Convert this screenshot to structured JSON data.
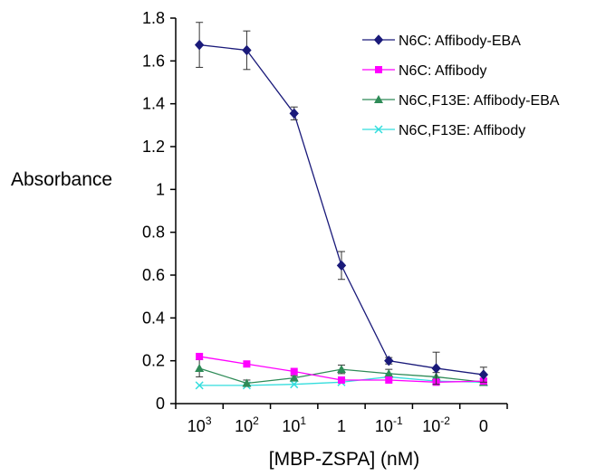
{
  "chart_data": {
    "type": "line",
    "title": "",
    "xlabel": "[MBP-ZSPA]   (nM)",
    "ylabel": "Absorbance",
    "categories": [
      {
        "base": "10",
        "sup": "3"
      },
      {
        "base": "10",
        "sup": "2"
      },
      {
        "base": "10",
        "sup": "1"
      },
      {
        "base": "1",
        "sup": ""
      },
      {
        "base": "10",
        "sup": "-1"
      },
      {
        "base": "10",
        "sup": "-2"
      },
      {
        "base": "0",
        "sup": ""
      }
    ],
    "ylim": [
      0,
      1.8
    ],
    "yticks": [
      "0",
      "0.2",
      "0.4",
      "0.6",
      "0.8",
      "1",
      "1.2",
      "1.4",
      "1.6",
      "1.8"
    ],
    "grid": false,
    "legend": "top-right",
    "series": [
      {
        "name": "N6C: Affibody-EBA",
        "color": "#1a1a7a",
        "marker": "diamond",
        "values": [
          1.675,
          1.65,
          1.355,
          0.645,
          0.2,
          0.165,
          0.135
        ],
        "errors": [
          0.105,
          0.09,
          0.03,
          0.065,
          0.015,
          0.075,
          0.035
        ]
      },
      {
        "name": "N6C: Affibody",
        "color": "#ff00ff",
        "marker": "square",
        "values": [
          0.22,
          0.185,
          0.15,
          0.11,
          0.11,
          0.1,
          0.105
        ],
        "errors": [
          0,
          0,
          0,
          0,
          0,
          0,
          0
        ]
      },
      {
        "name": "N6C,F13E: Affibody-EBA",
        "color": "#2e8b57",
        "marker": "triangle",
        "values": [
          0.165,
          0.095,
          0.12,
          0.16,
          0.14,
          0.125,
          0.1
        ],
        "errors": [
          0.04,
          0.015,
          0.01,
          0.02,
          0.02,
          0.02,
          0.015
        ]
      },
      {
        "name": "N6C,F13E: Affibody",
        "color": "#33dddd",
        "marker": "x",
        "values": [
          0.085,
          0.085,
          0.09,
          0.1,
          0.125,
          0.105,
          0.1
        ],
        "errors": [
          0,
          0,
          0,
          0,
          0,
          0,
          0
        ]
      }
    ]
  }
}
